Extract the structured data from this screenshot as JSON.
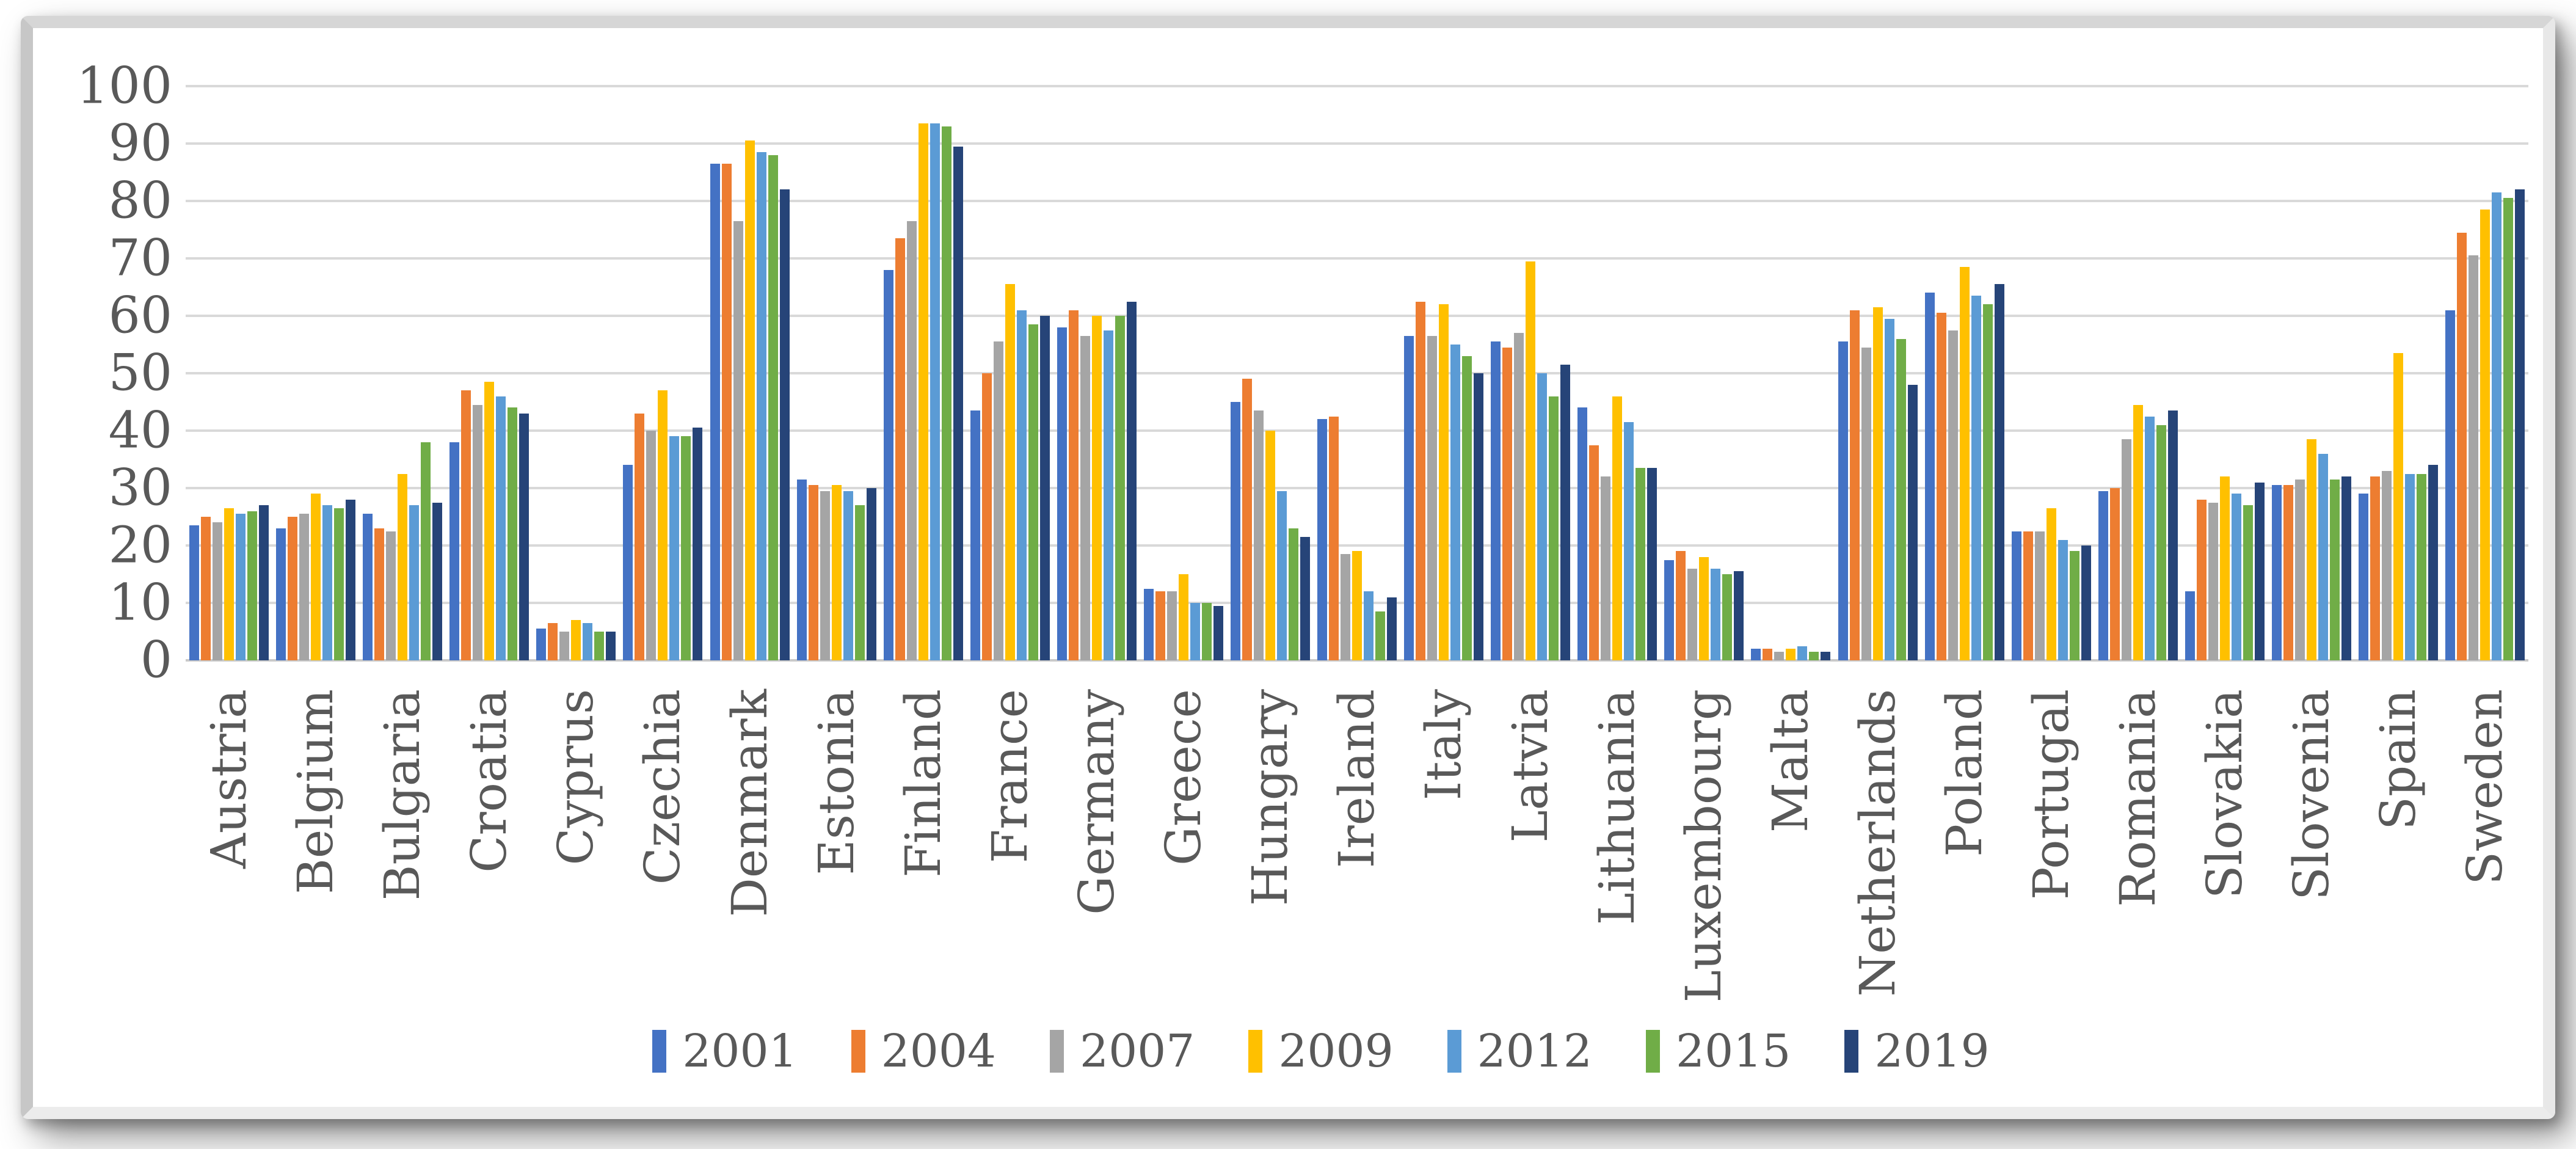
{
  "chart_data": {
    "type": "bar",
    "title": "",
    "xlabel": "",
    "ylabel": "",
    "ylim": [
      0,
      100
    ],
    "ytick_step": 10,
    "yticks": [
      0,
      10,
      20,
      30,
      40,
      50,
      60,
      70,
      80,
      90,
      100
    ],
    "grid": true,
    "legend_position": "bottom",
    "text_color": "#595959",
    "gridline_color": "#d9d9d9",
    "categories": [
      "Austria",
      "Belgium",
      "Bulgaria",
      "Croatia",
      "Cyprus",
      "Czechia",
      "Denmark",
      "Estonia",
      "Finland",
      "France",
      "Germany",
      "Greece",
      "Hungary",
      "Ireland",
      "Italy",
      "Latvia",
      "Lithuania",
      "Luxembourg",
      "Malta",
      "Netherlands",
      "Poland",
      "Portugal",
      "Romania",
      "Slovakia",
      "Slovenia",
      "Spain",
      "Sweden"
    ],
    "series": [
      {
        "name": "2001",
        "color": "#4472C4",
        "values": [
          23.5,
          23,
          25.5,
          38,
          5.5,
          34,
          86.5,
          31.5,
          68,
          43.5,
          58,
          12.5,
          45,
          42,
          56.5,
          55.5,
          44,
          17.5,
          2,
          55.5,
          64,
          22.5,
          29.5,
          12,
          30.5,
          29,
          61
        ]
      },
      {
        "name": "2004",
        "color": "#ED7D31",
        "values": [
          25,
          25,
          23,
          47,
          6.5,
          43,
          86.5,
          30.5,
          73.5,
          50,
          61,
          12,
          49,
          42.5,
          62.5,
          54.5,
          37.5,
          19,
          2,
          61,
          60.5,
          22.5,
          30,
          28,
          30.5,
          32,
          74.5
        ]
      },
      {
        "name": "2007",
        "color": "#A5A5A5",
        "values": [
          24,
          25.5,
          22.5,
          44.5,
          5,
          40,
          76.5,
          29.5,
          76.5,
          55.5,
          56.5,
          12,
          43.5,
          18.5,
          56.5,
          57,
          32,
          16,
          1.5,
          54.5,
          57.5,
          22.5,
          38.5,
          27.5,
          31.5,
          33,
          70.5
        ]
      },
      {
        "name": "2009",
        "color": "#FFC000",
        "values": [
          26.5,
          29,
          32.5,
          48.5,
          7,
          47,
          90.5,
          30.5,
          93.5,
          65.5,
          60,
          15,
          40,
          19,
          62,
          69.5,
          46,
          18,
          2,
          61.5,
          68.5,
          26.5,
          44.5,
          32,
          38.5,
          53.5,
          78.5
        ]
      },
      {
        "name": "2012",
        "color": "#5B9BD5",
        "values": [
          25.5,
          27,
          27,
          46,
          6.5,
          39,
          88.5,
          29.5,
          93.5,
          61,
          57.5,
          10,
          29.5,
          12,
          55,
          50,
          41.5,
          16,
          2.5,
          59.5,
          63.5,
          21,
          42.5,
          29,
          36,
          32.5,
          81.5
        ]
      },
      {
        "name": "2015",
        "color": "#70AD47",
        "values": [
          26,
          26.5,
          38,
          44,
          5,
          39,
          88,
          27,
          93,
          58.5,
          60,
          10,
          23,
          8.5,
          53,
          46,
          33.5,
          15,
          1.5,
          56,
          62,
          19,
          41,
          27,
          31.5,
          32.5,
          80.5
        ]
      },
      {
        "name": "2019",
        "color": "#264478",
        "values": [
          27,
          28,
          27.5,
          43,
          5,
          40.5,
          82,
          30,
          89.5,
          60,
          62.5,
          9.5,
          21.5,
          11,
          50,
          51.5,
          33.5,
          15.5,
          1.5,
          48,
          65.5,
          20,
          43.5,
          31,
          32,
          34,
          82
        ]
      }
    ]
  }
}
